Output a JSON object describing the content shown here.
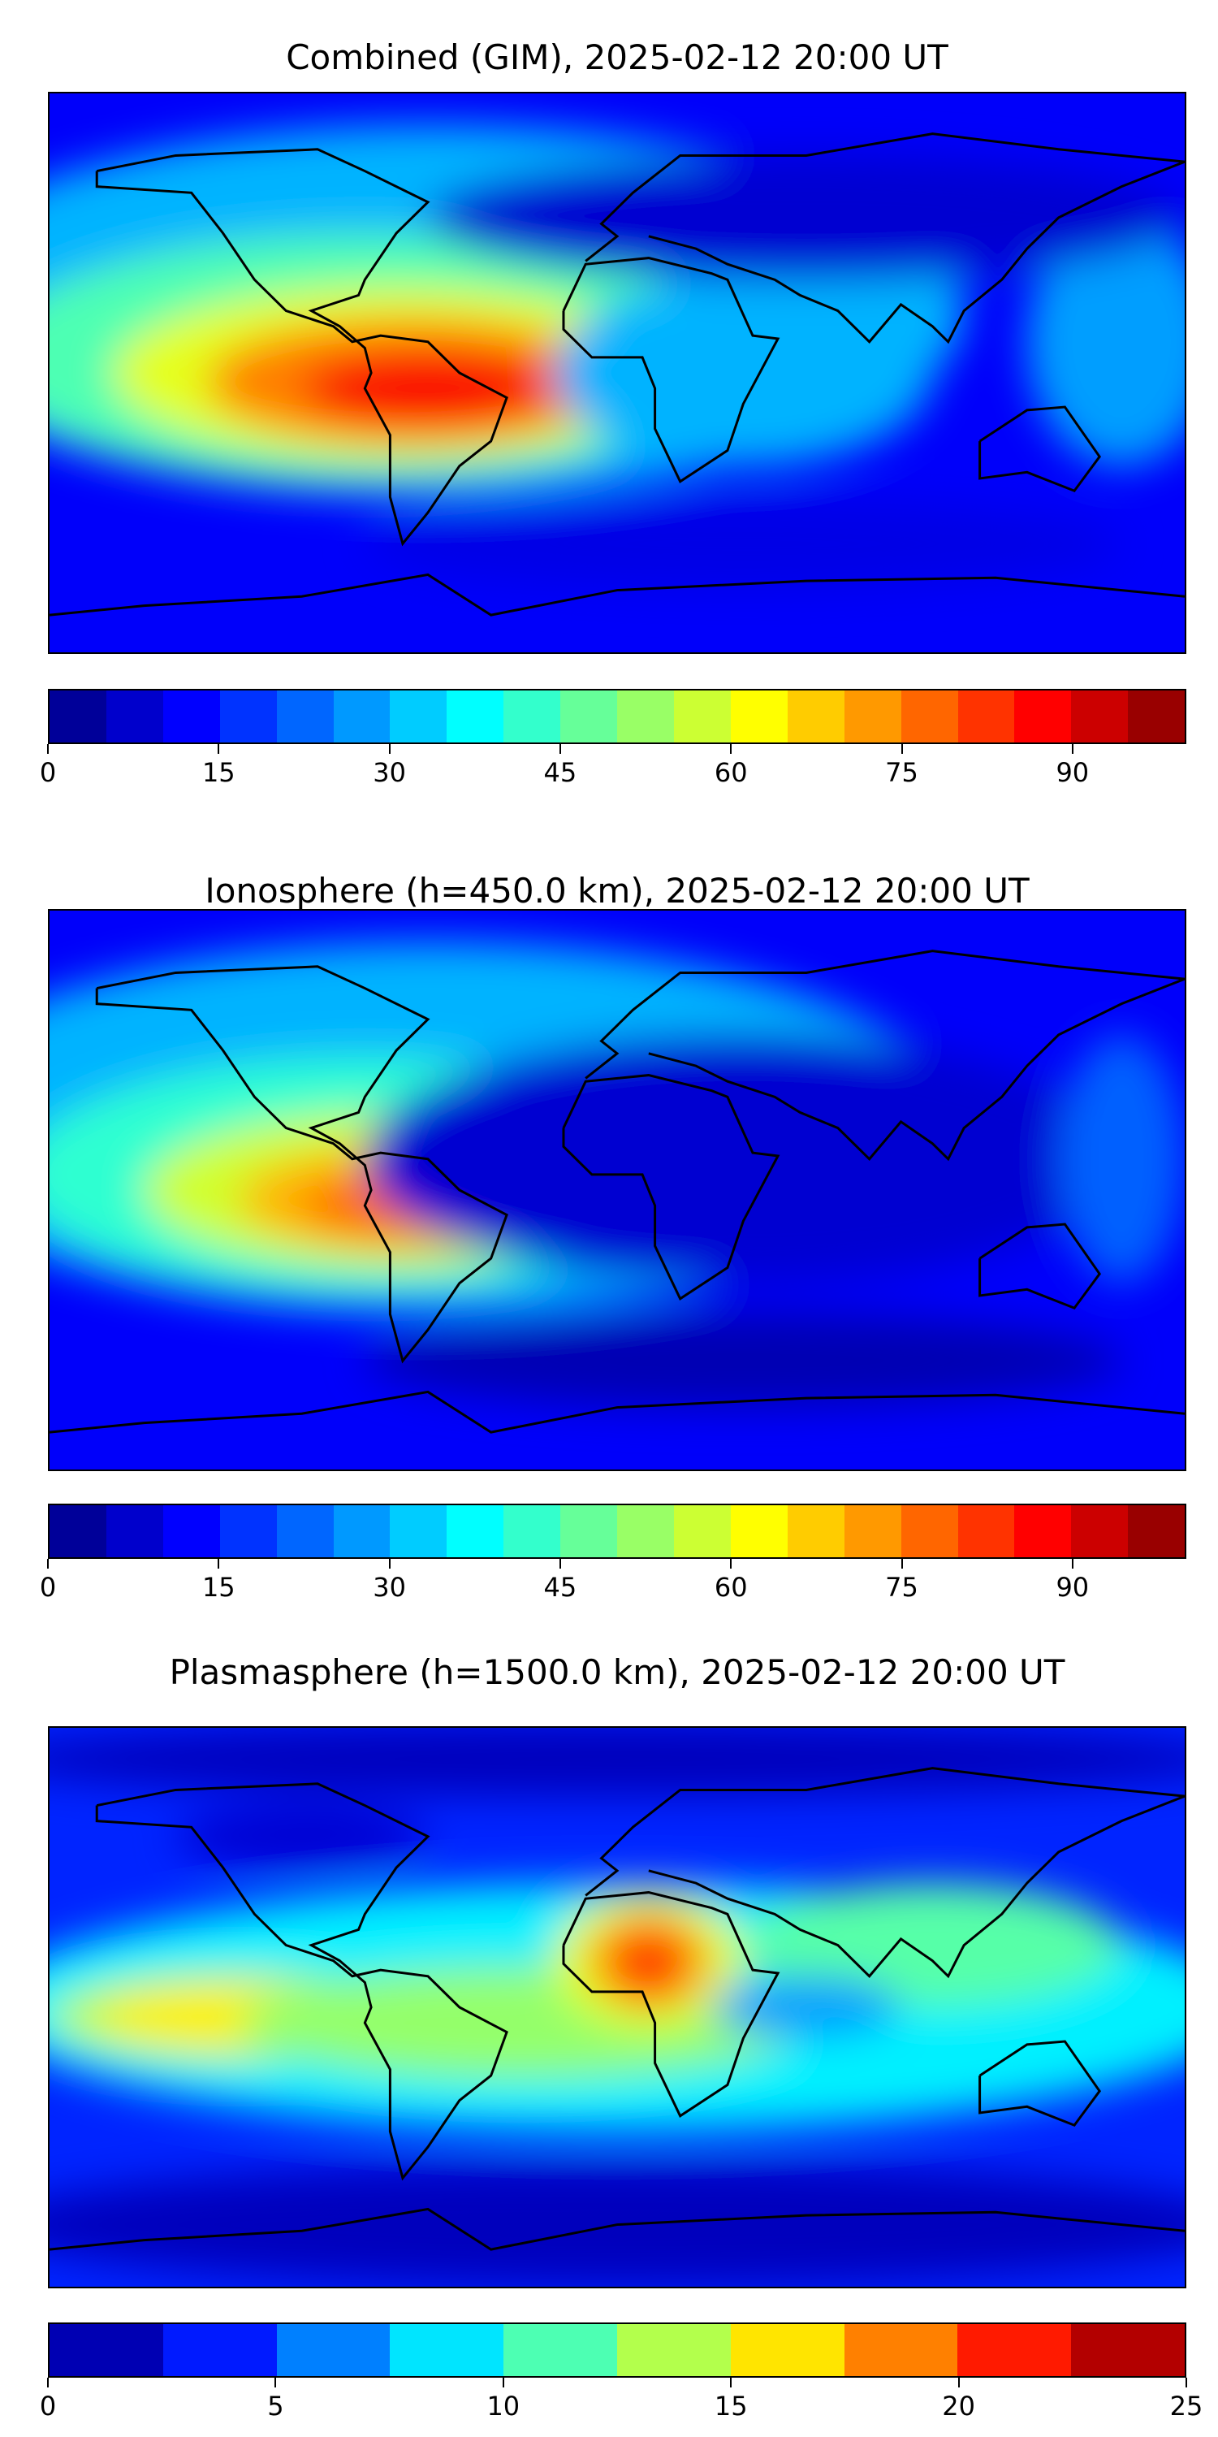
{
  "chart_data": [
    {
      "type": "heatmap",
      "title": "Combined (GIM), 2025-02-12 20:00 UT",
      "vmin": 0,
      "vmax": 100,
      "levels": 20,
      "tick_labels": [
        "0",
        "15",
        "30",
        "45",
        "60",
        "75",
        "90"
      ],
      "ticks": [
        0,
        15,
        30,
        45,
        60,
        75,
        90
      ],
      "colormap": "jet",
      "xlim": [
        -180,
        180
      ],
      "ylim": [
        -90,
        90
      ]
    },
    {
      "type": "heatmap",
      "title": "Ionosphere  (h=450.0 km), 2025-02-12 20:00 UT",
      "vmin": 0,
      "vmax": 100,
      "levels": 20,
      "tick_labels": [
        "0",
        "15",
        "30",
        "45",
        "60",
        "75",
        "90"
      ],
      "ticks": [
        0,
        15,
        30,
        45,
        60,
        75,
        90
      ],
      "colormap": "jet",
      "xlim": [
        -180,
        180
      ],
      "ylim": [
        -90,
        90
      ]
    },
    {
      "type": "heatmap",
      "title": "Plasmasphere (h=1500.0 km), 2025-02-12 20:00 UT",
      "vmin": 0,
      "vmax": 25,
      "levels": 10,
      "tick_labels": [
        "0",
        "5",
        "10",
        "15",
        "20",
        "25"
      ],
      "ticks": [
        0,
        5,
        10,
        15,
        20,
        25
      ],
      "colormap": "jet",
      "xlim": [
        -180,
        180
      ],
      "ylim": [
        -90,
        90
      ]
    }
  ]
}
